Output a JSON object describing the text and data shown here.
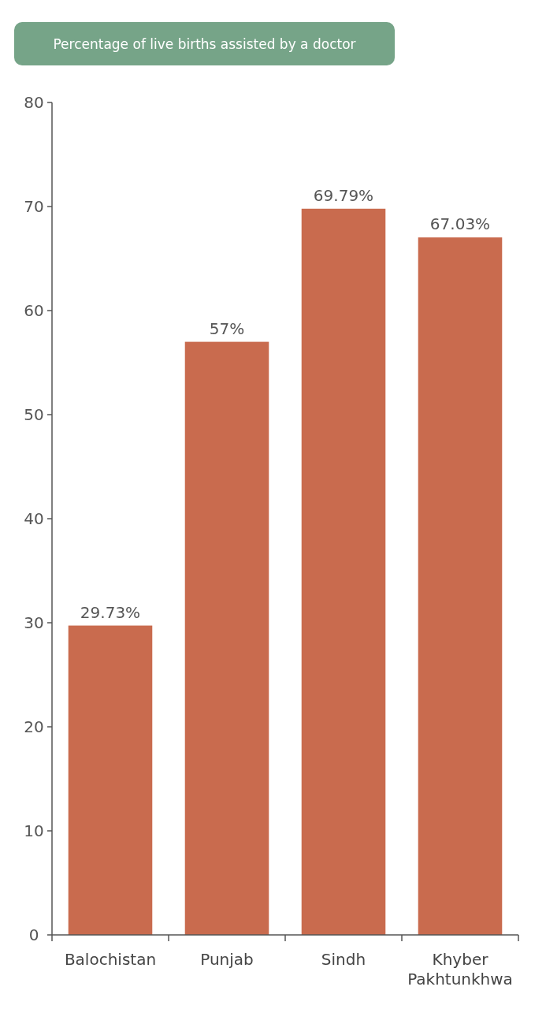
{
  "chart_data": {
    "type": "bar",
    "title": "Percentage of live births assisted by a doctor",
    "categories": [
      "Balochistan",
      "Punjab",
      "Sindh",
      "Khyber Pakhtunkhwa"
    ],
    "values": [
      29.73,
      57,
      69.79,
      67.03
    ],
    "value_labels": [
      "29.73%",
      "57%",
      "69.79%",
      "67.03%"
    ],
    "color": "#c96b4e",
    "ylim": [
      0,
      80
    ],
    "yticks": [
      0,
      10,
      20,
      30,
      40,
      50,
      60,
      70,
      80
    ],
    "grid": false
  }
}
